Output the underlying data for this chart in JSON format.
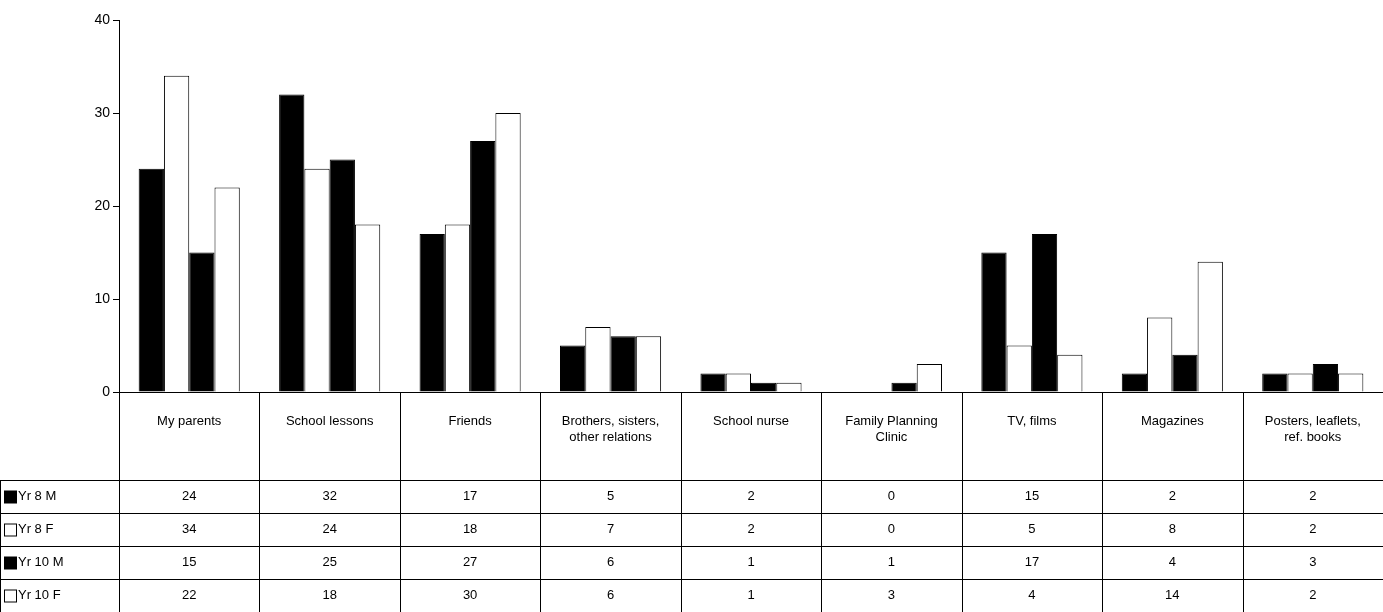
{
  "chart_data": {
    "type": "bar",
    "categories": [
      "My parents",
      "School lessons",
      "Friends",
      "Brothers, sisters, other relations",
      "School nurse",
      "Family Planning Clinic",
      "TV, films",
      "Magazines",
      "Posters, leaflets, ref. books"
    ],
    "series": [
      {
        "name": "Yr 8 M",
        "color": "#000000",
        "values": [
          24,
          32,
          17,
          5,
          2,
          0,
          15,
          2,
          2
        ]
      },
      {
        "name": "Yr 8 F",
        "color": "#ffffff",
        "values": [
          34,
          24,
          18,
          7,
          2,
          0,
          5,
          8,
          2
        ]
      },
      {
        "name": "Yr 10 M",
        "color": "#000000",
        "values": [
          15,
          25,
          27,
          6,
          1,
          1,
          17,
          4,
          3
        ]
      },
      {
        "name": "Yr 10 F",
        "color": "#ffffff",
        "values": [
          22,
          18,
          30,
          6,
          1,
          3,
          4,
          14,
          2
        ]
      }
    ],
    "ylim": [
      0,
      40
    ],
    "yticks": [
      0,
      10,
      20,
      30,
      40
    ],
    "grid": false,
    "legend": "bottom",
    "data_labels": true
  }
}
